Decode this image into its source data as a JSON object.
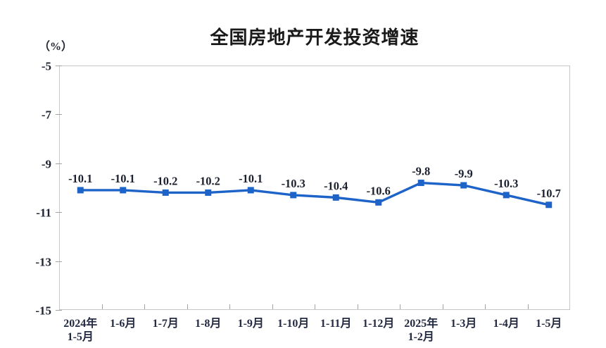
{
  "chart_data": {
    "type": "line",
    "title": "全国房地产开发投资增速",
    "unit_label": "（%）",
    "categories": [
      "2024年\n1-5月",
      "1-6月",
      "1-7月",
      "1-8月",
      "1-9月",
      "1-10月",
      "1-11月",
      "1-12月",
      "2025年\n1-2月",
      "1-3月",
      "1-4月",
      "1-5月"
    ],
    "values": [
      -10.1,
      -10.1,
      -10.2,
      -10.2,
      -10.1,
      -10.3,
      -10.4,
      -10.6,
      -9.8,
      -9.9,
      -10.3,
      -10.7
    ],
    "data_labels": [
      "-10.1",
      "-10.1",
      "-10.2",
      "-10.2",
      "-10.1",
      "-10.3",
      "-10.4",
      "-10.6",
      "-9.8",
      "-9.9",
      "-10.3",
      "-10.7"
    ],
    "xlabel": "",
    "ylabel": "（%）",
    "ylim": [
      -15,
      -5
    ],
    "yticks": [
      -5,
      -7,
      -9,
      -11,
      -13,
      -15
    ],
    "grid": false,
    "legend": "none",
    "line_color": "#1d63c8",
    "marker": "square",
    "axis_border_color": "#c7c7c7",
    "tick_color": "#a3a3a3"
  }
}
